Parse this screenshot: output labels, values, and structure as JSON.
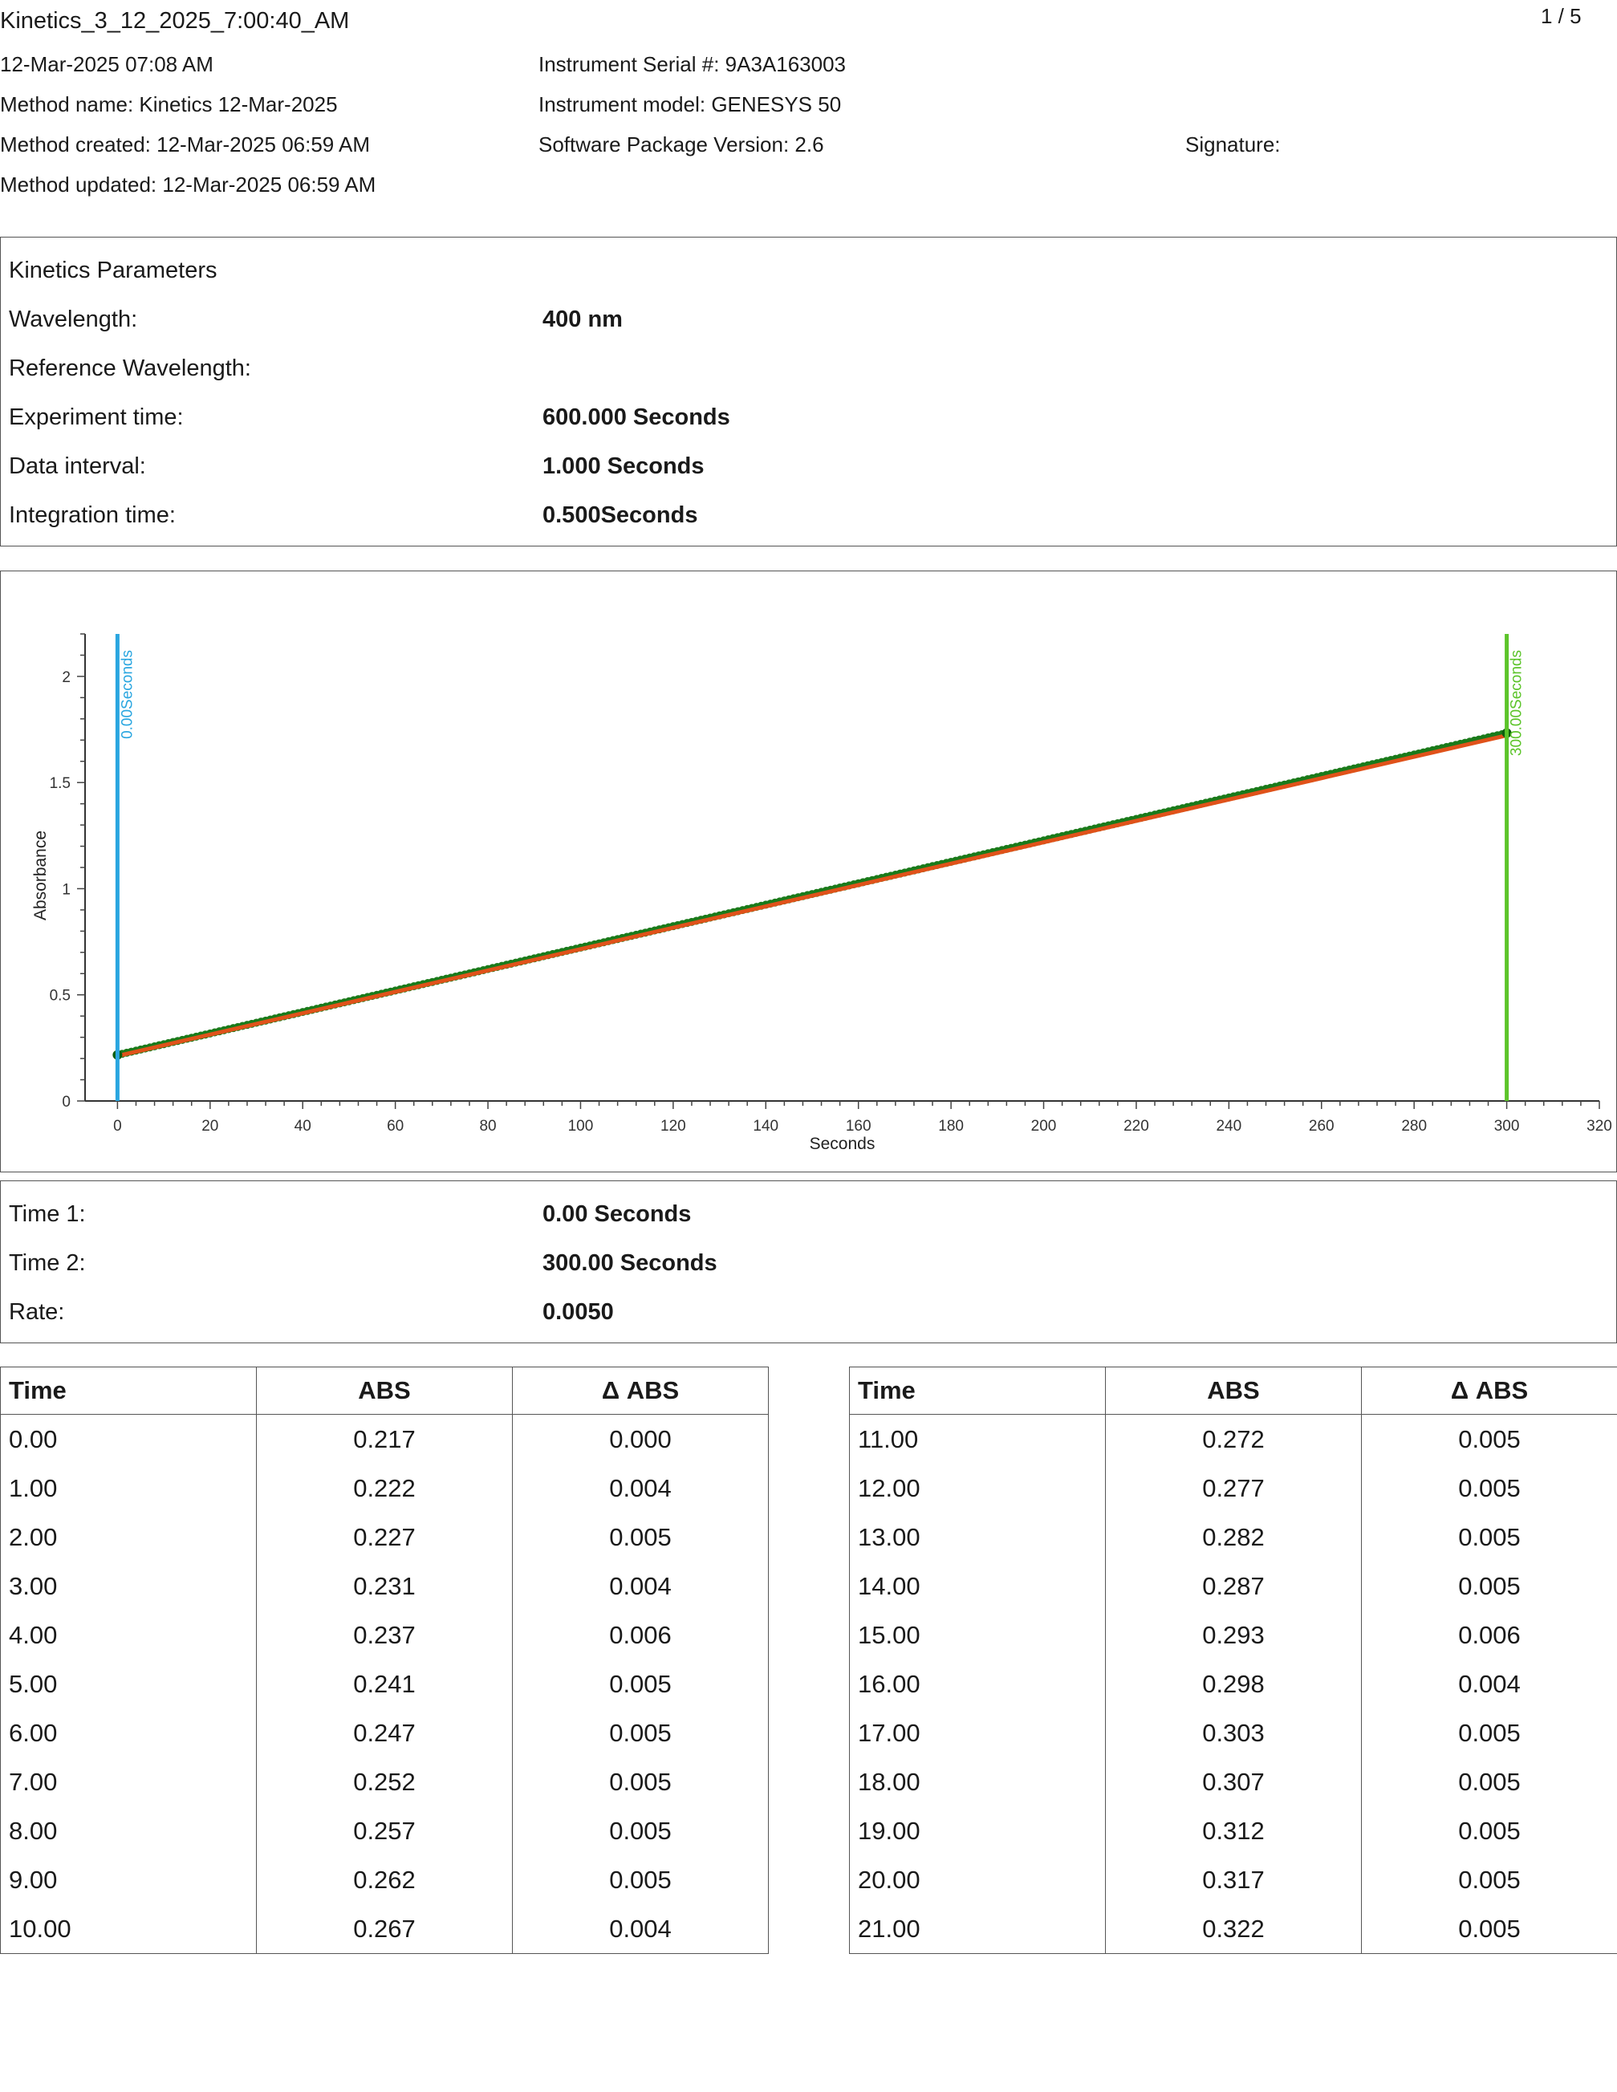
{
  "header": {
    "filename": "Kinetics_3_12_2025_7:00:40_AM",
    "page_indicator": "1 / 5",
    "date_time": "12-Mar-2025 07:08 AM",
    "method_name": "Method name: Kinetics 12-Mar-2025",
    "method_created": "Method created: 12-Mar-2025 06:59 AM",
    "method_updated": "Method updated: 12-Mar-2025 06:59 AM",
    "instrument_serial": "Instrument Serial #: 9A3A163003",
    "instrument_model": "Instrument model: GENESYS 50",
    "software_version": "Software Package Version: 2.6",
    "signature_label": "Signature:"
  },
  "parameters": {
    "title": "Kinetics Parameters",
    "rows": [
      {
        "label": "Wavelength:",
        "value": "400 nm"
      },
      {
        "label": "Reference Wavelength:",
        "value": ""
      },
      {
        "label": "Experiment time:",
        "value": "600.000 Seconds"
      },
      {
        "label": "Data interval:",
        "value": "1.000 Seconds"
      },
      {
        "label": "Integration time:",
        "value": "0.500Seconds"
      }
    ]
  },
  "chart_data": {
    "type": "scatter",
    "xlabel": "Seconds",
    "ylabel": "Absorbance",
    "xlim": [
      -7,
      320
    ],
    "ylim": [
      0,
      2.2
    ],
    "x_ticks": [
      0,
      20,
      40,
      60,
      80,
      100,
      120,
      140,
      160,
      180,
      200,
      220,
      240,
      260,
      280,
      300,
      320
    ],
    "y_ticks": [
      0,
      0.5,
      1,
      1.5,
      2
    ],
    "y_tick_labels": [
      "0",
      "0.5",
      "1",
      "1.5",
      "2"
    ],
    "series": [
      {
        "name": "",
        "color": "#1a7a1a",
        "x_start": 0,
        "x_end": 300,
        "x_step": 1,
        "y_start": 0.217,
        "y_end": 1.733
      }
    ],
    "fit_line": {
      "color": "#e0521a",
      "x": [
        0,
        300
      ],
      "y": [
        0.212,
        1.722
      ]
    },
    "markers": [
      {
        "x": 0,
        "label": "0.00Seconds",
        "color": "#2aa6e0"
      },
      {
        "x": 300,
        "label": "300.00Seconds",
        "color": "#5cc42a"
      }
    ],
    "grid": false
  },
  "results": {
    "rows": [
      {
        "label": "Time 1:",
        "value": "0.00 Seconds"
      },
      {
        "label": "Time 2:",
        "value": "300.00 Seconds"
      },
      {
        "label": "Rate:",
        "value": "0.0050"
      }
    ]
  },
  "tables": {
    "headers": [
      "Time",
      "ABS",
      "Δ ABS"
    ],
    "left": [
      [
        "0.00",
        "0.217",
        "0.000"
      ],
      [
        "1.00",
        "0.222",
        "0.004"
      ],
      [
        "2.00",
        "0.227",
        "0.005"
      ],
      [
        "3.00",
        "0.231",
        "0.004"
      ],
      [
        "4.00",
        "0.237",
        "0.006"
      ],
      [
        "5.00",
        "0.241",
        "0.005"
      ],
      [
        "6.00",
        "0.247",
        "0.005"
      ],
      [
        "7.00",
        "0.252",
        "0.005"
      ],
      [
        "8.00",
        "0.257",
        "0.005"
      ],
      [
        "9.00",
        "0.262",
        "0.005"
      ],
      [
        "10.00",
        "0.267",
        "0.004"
      ]
    ],
    "right": [
      [
        "11.00",
        "0.272",
        "0.005"
      ],
      [
        "12.00",
        "0.277",
        "0.005"
      ],
      [
        "13.00",
        "0.282",
        "0.005"
      ],
      [
        "14.00",
        "0.287",
        "0.005"
      ],
      [
        "15.00",
        "0.293",
        "0.006"
      ],
      [
        "16.00",
        "0.298",
        "0.004"
      ],
      [
        "17.00",
        "0.303",
        "0.005"
      ],
      [
        "18.00",
        "0.307",
        "0.005"
      ],
      [
        "19.00",
        "0.312",
        "0.005"
      ],
      [
        "20.00",
        "0.317",
        "0.005"
      ],
      [
        "21.00",
        "0.322",
        "0.005"
      ]
    ]
  }
}
